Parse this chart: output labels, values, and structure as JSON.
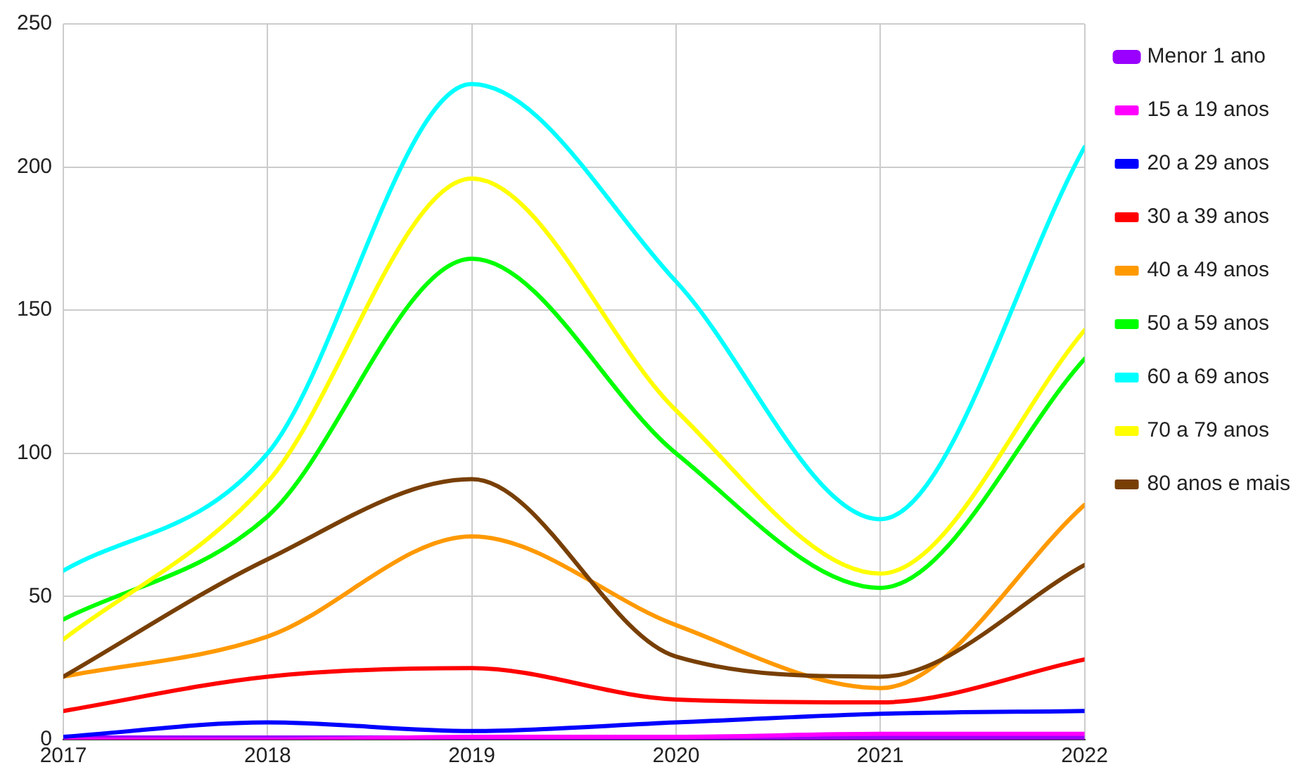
{
  "chart_data": {
    "type": "line",
    "x": [
      2017,
      2018,
      2019,
      2020,
      2021,
      2022
    ],
    "xlim": [
      2017,
      2022
    ],
    "xticks": [
      2017,
      2018,
      2019,
      2020,
      2021,
      2022
    ],
    "ylim": [
      0,
      250
    ],
    "yticks": [
      0,
      50,
      100,
      150,
      200,
      250
    ],
    "grid": true,
    "legend": "right",
    "marker": "none",
    "line_style": "solid",
    "series": [
      {
        "name": "Menor 1 ano",
        "color": "#9900ff",
        "values": [
          0,
          0,
          0,
          0,
          0,
          0
        ]
      },
      {
        "name": "15 a 19 anos",
        "color": "#ff00ff",
        "values": [
          0,
          0,
          1,
          1,
          2,
          2
        ]
      },
      {
        "name": "20 a 29 anos",
        "color": "#0000ff",
        "values": [
          1,
          6,
          3,
          6,
          9,
          10
        ]
      },
      {
        "name": "30 a 39 anos",
        "color": "#ff0000",
        "values": [
          10,
          22,
          25,
          14,
          13,
          28
        ]
      },
      {
        "name": "40 a 49 anos",
        "color": "#ff9900",
        "values": [
          22,
          36,
          71,
          40,
          18,
          82
        ]
      },
      {
        "name": "50 a 59 anos",
        "color": "#00ff00",
        "values": [
          42,
          78,
          168,
          100,
          53,
          133
        ]
      },
      {
        "name": "60 a 69 anos",
        "color": "#00ffff",
        "values": [
          59,
          100,
          229,
          160,
          77,
          207
        ]
      },
      {
        "name": "70 a 79 anos",
        "color": "#ffff00",
        "values": [
          35,
          90,
          196,
          115,
          58,
          143
        ]
      },
      {
        "name": "80 anos e mais",
        "color": "#783f04",
        "values": [
          22,
          63,
          91,
          29,
          22,
          61
        ]
      }
    ]
  }
}
